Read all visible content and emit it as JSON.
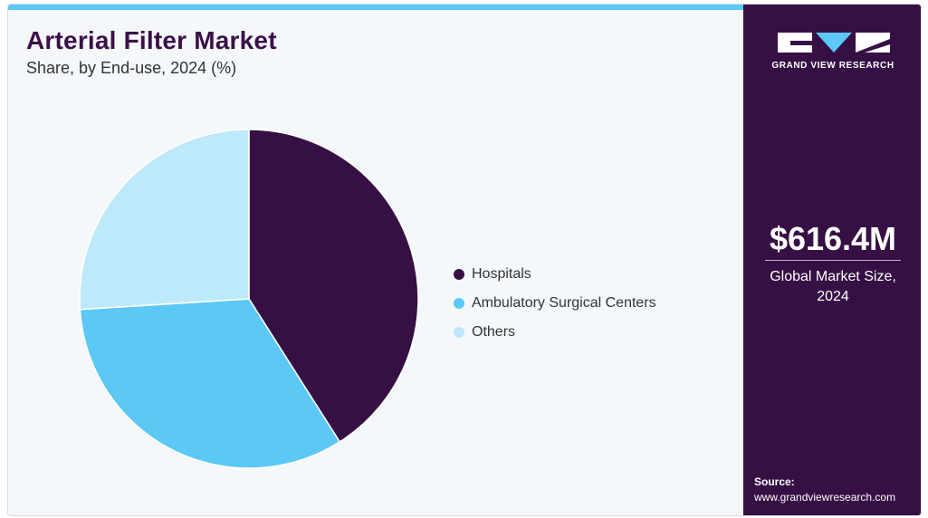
{
  "header": {
    "title": "Arterial Filter Market",
    "subtitle": "Share, by End-use, 2024 (%)"
  },
  "chart_data": {
    "type": "pie",
    "categories": [
      "Hospitals",
      "Ambulatory Surgical Centers",
      "Others"
    ],
    "values": [
      41,
      33,
      26
    ],
    "colors": [
      "#361044",
      "#5bc8f5",
      "#bde9fa"
    ],
    "start_angle_deg": 0,
    "direction": "clockwise",
    "legend_position": "right"
  },
  "side_panel": {
    "brand": "GRAND VIEW RESEARCH",
    "market_value": "$616.4M",
    "market_label": "Global Market Size, 2024",
    "source_label": "Source:",
    "source_url": "www.grandviewresearch.com",
    "background_color": "#361044"
  }
}
